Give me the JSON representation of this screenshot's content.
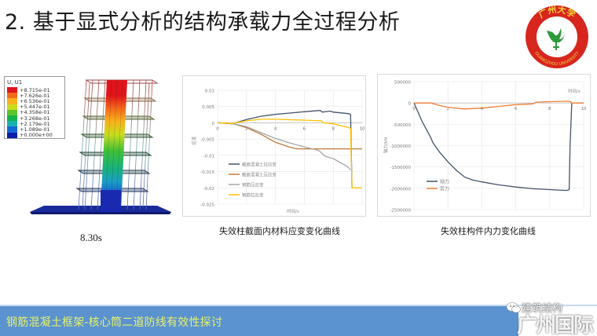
{
  "slide": {
    "title": "2. 基于显式分析的结构承载力全过程分析",
    "logo": {
      "name": "guangzhou-university-logo",
      "text_cn": "广州大学",
      "text_en": "GUANGZHOU UNIVERSITY",
      "ring_color": "#d7261e",
      "text_color": "#f3d23b",
      "emblem_color": "#2f9a3c"
    },
    "model": {
      "legend_title": "U, U1",
      "legend_values": [
        "+8.715e-01",
        "+7.626e-01",
        "+6.536e-01",
        "+5.447e-01",
        "+4.358e-01",
        "+3.268e-01",
        "+2.179e-01",
        "+1.089e-01",
        "+0.000e+00"
      ],
      "legend_colors": [
        "#e0141a",
        "#f26a1b",
        "#f7b21c",
        "#c9dc1c",
        "#5cc52e",
        "#16b24a",
        "#1bb3b0",
        "#1668d6",
        "#0a1ea8"
      ],
      "time_label": "8.30s"
    },
    "caption_mid": "失效柱截面内材料应变变化曲线",
    "caption_right": "失效柱构件内力变化曲线",
    "banner": {
      "text": "钢筋混凝土框架-核心筒二道防线有效性探讨",
      "bg_color": "#5b92d0",
      "text_color": "#e6f26a"
    },
    "watermark": {
      "small_text": "建筑结构",
      "big_text": "广州国际"
    }
  },
  "chart_data": [
    {
      "type": "line",
      "title": "失效柱截面内材料应变变化曲线",
      "xlabel": "时间/s",
      "ylabel": "应变",
      "xlim": [
        0,
        10
      ],
      "ylim": [
        -0.025,
        0.01
      ],
      "xticks": [
        "0",
        "2",
        "4",
        "6",
        "8",
        "10"
      ],
      "yticks": [
        "0.01",
        "0.005",
        "0",
        "-0.005",
        "-0.01",
        "-0.015",
        "-0.02",
        "-0.025"
      ],
      "grid": true,
      "legend_position": "lower-left inside",
      "series": [
        {
          "name": "截面混凝土拉应变",
          "color": "#44546a",
          "x": [
            0,
            1,
            2,
            3,
            4,
            5,
            6,
            7.1,
            7.25,
            7.8,
            8,
            9.1,
            9.2,
            9.3
          ],
          "y": [
            0,
            -0.0003,
            0.001,
            0.002,
            0.0026,
            0.003,
            0.0034,
            0.0038,
            0.0033,
            0.0036,
            0.0033,
            0.0028,
            0.0025,
            -0.02
          ]
        },
        {
          "name": "截面混凝土压应变",
          "color": "#c07a3a",
          "x": [
            0,
            1,
            2,
            3,
            4,
            5,
            5.5,
            6,
            8,
            10
          ],
          "y": [
            0,
            -0.0002,
            -0.0015,
            -0.0035,
            -0.006,
            -0.0075,
            -0.008,
            -0.008,
            -0.008,
            -0.008
          ]
        },
        {
          "name": "钢筋压应变",
          "color": "#a5a5a5",
          "x": [
            0,
            1,
            2,
            3,
            4,
            5,
            6,
            7,
            7.2,
            7.4,
            8,
            9,
            9.2
          ],
          "y": [
            0,
            -0.0002,
            -0.0012,
            -0.003,
            -0.0048,
            -0.0062,
            -0.0074,
            -0.0085,
            -0.0093,
            -0.0102,
            -0.011,
            -0.0135,
            -0.0145
          ]
        },
        {
          "name": "钢筋拉应变",
          "color": "#ffc000",
          "x": [
            0,
            1,
            2,
            3,
            4,
            6,
            7.2,
            7.3,
            8,
            9.1,
            9.2,
            9.3,
            10
          ],
          "y": [
            0,
            -0.0002,
            0.0006,
            0.0011,
            0.0011,
            0.0008,
            0.0006,
            0.0,
            -0.0003,
            -0.0015,
            -0.0017,
            -0.02,
            -0.02
          ]
        }
      ]
    },
    {
      "type": "line",
      "title": "失效柱构件内力变化曲线",
      "xlabel": "时间/s",
      "ylabel": "轴力/kN",
      "xlim": [
        0,
        10
      ],
      "ylim": [
        -2500000,
        500000
      ],
      "xticks": [
        "0",
        "2",
        "4",
        "6",
        "8",
        "10"
      ],
      "yticks": [
        "500000",
        "0",
        "-500000",
        "-1000000",
        "-1500000",
        "-2000000",
        "-2500000"
      ],
      "grid": true,
      "legend_position": "lower-left inside",
      "series": [
        {
          "name": "轴力",
          "color": "#44546a",
          "x": [
            0,
            0.5,
            1,
            1.1,
            1.5,
            2,
            2.5,
            3,
            3.5,
            4,
            5,
            6,
            7,
            8,
            9,
            9.15,
            9.2,
            9.3
          ],
          "y": [
            0,
            -450000,
            -820000,
            -920000,
            -1150000,
            -1380000,
            -1580000,
            -1740000,
            -1810000,
            -1850000,
            -1920000,
            -1970000,
            -2010000,
            -2030000,
            -2050000,
            -2030000,
            -1000000,
            0
          ]
        },
        {
          "name": "剪力",
          "color": "#ed7d31",
          "x": [
            0,
            1,
            1.5,
            2,
            3,
            4,
            5,
            6,
            7,
            7.2,
            8,
            9,
            9.2,
            9.3,
            10
          ],
          "y": [
            0,
            0,
            -60000,
            -100000,
            -140000,
            -120000,
            -80000,
            -40000,
            -20000,
            20000,
            30000,
            40000,
            40000,
            0,
            0
          ]
        }
      ]
    }
  ]
}
